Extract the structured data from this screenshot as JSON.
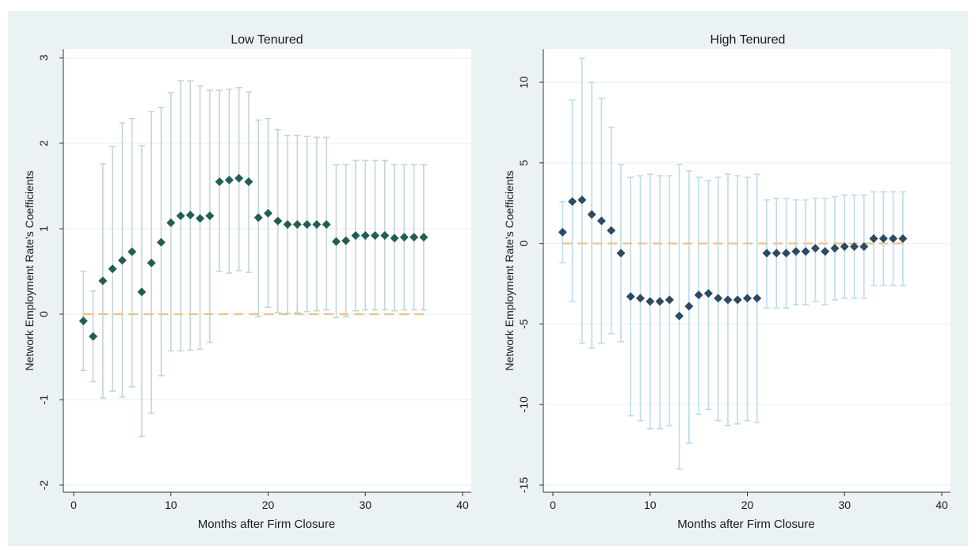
{
  "chart_data": [
    {
      "type": "scatter",
      "title": "Low Tenured",
      "xlabel": "Months after Firm Closure",
      "ylabel": "Network Employment Rate's Coefficients",
      "xlim": [
        0,
        40
      ],
      "ylim": [
        -2,
        3
      ],
      "xticks": [
        "0",
        "10",
        "20",
        "30",
        "40"
      ],
      "yticks": [
        "-2",
        "-1",
        "0",
        "1",
        "2",
        "3"
      ],
      "grid": true,
      "reference_line": 0,
      "colors": {
        "marker": "#215e55",
        "ci": "#c3d6d3",
        "ref_line": "#f0c08a",
        "plot_bg": "#ffffff",
        "outer_bg": "#eaf2f3"
      },
      "x": [
        1,
        2,
        3,
        4,
        5,
        6,
        7,
        8,
        9,
        10,
        11,
        12,
        13,
        14,
        15,
        16,
        17,
        18,
        19,
        20,
        21,
        22,
        23,
        24,
        25,
        26,
        27,
        28,
        29,
        30,
        31,
        32,
        33,
        34,
        35,
        36
      ],
      "coef": [
        -0.08,
        -0.26,
        0.39,
        0.53,
        0.63,
        0.73,
        0.26,
        0.6,
        0.84,
        1.07,
        1.15,
        1.16,
        1.12,
        1.15,
        1.55,
        1.57,
        1.59,
        1.55,
        1.13,
        1.18,
        1.09,
        1.05,
        1.05,
        1.05,
        1.05,
        1.05,
        0.85,
        0.86,
        0.92,
        0.92,
        0.92,
        0.92,
        0.89,
        0.9,
        0.9,
        0.9
      ],
      "ci_low": [
        -0.66,
        -0.79,
        -0.98,
        -0.9,
        -0.97,
        -0.85,
        -1.43,
        -1.16,
        -0.72,
        -0.43,
        -0.43,
        -0.42,
        -0.41,
        -0.33,
        0.5,
        0.48,
        0.51,
        0.49,
        -0.03,
        0.08,
        0.02,
        0.01,
        0.02,
        0.03,
        0.04,
        0.05,
        -0.04,
        -0.03,
        0.04,
        0.05,
        0.05,
        0.05,
        0.04,
        0.05,
        0.05,
        0.05
      ],
      "ci_high": [
        0.5,
        0.27,
        1.76,
        1.96,
        2.24,
        2.29,
        1.97,
        2.37,
        2.42,
        2.59,
        2.73,
        2.73,
        2.67,
        2.62,
        2.62,
        2.63,
        2.65,
        2.6,
        2.27,
        2.29,
        2.16,
        2.09,
        2.09,
        2.08,
        2.07,
        2.07,
        1.75,
        1.75,
        1.8,
        1.8,
        1.8,
        1.8,
        1.75,
        1.75,
        1.75,
        1.75
      ]
    },
    {
      "type": "scatter",
      "title": "High Tenured",
      "xlabel": "Months after Firm Closure",
      "ylabel": "Network Employment Rate's Coefficients",
      "xlim": [
        0,
        40
      ],
      "ylim": [
        -15,
        10
      ],
      "xticks": [
        "0",
        "10",
        "20",
        "30",
        "40"
      ],
      "yticks": [
        "-15",
        "-10",
        "-5",
        "0",
        "5",
        "10"
      ],
      "grid": true,
      "reference_line": 0,
      "colors": {
        "marker": "#2c4a62",
        "ci": "#bcdcec",
        "ref_line": "#f0c08a",
        "plot_bg": "#ffffff",
        "outer_bg": "#eaf2f3"
      },
      "x": [
        1,
        2,
        3,
        4,
        5,
        6,
        7,
        8,
        9,
        10,
        11,
        12,
        13,
        14,
        15,
        16,
        17,
        18,
        19,
        20,
        21,
        22,
        23,
        24,
        25,
        26,
        27,
        28,
        29,
        30,
        31,
        32,
        33,
        34,
        35,
        36
      ],
      "coef": [
        0.7,
        2.6,
        2.7,
        1.8,
        1.4,
        0.8,
        -0.6,
        -3.3,
        -3.4,
        -3.6,
        -3.6,
        -3.5,
        -4.5,
        -3.9,
        -3.2,
        -3.1,
        -3.4,
        -3.5,
        -3.5,
        -3.4,
        -3.4,
        -0.6,
        -0.6,
        -0.6,
        -0.5,
        -0.5,
        -0.3,
        -0.5,
        -0.3,
        -0.2,
        -0.2,
        -0.2,
        0.3,
        0.3,
        0.3,
        0.3
      ],
      "ci_low": [
        -1.2,
        -3.6,
        -6.2,
        -6.5,
        -6.2,
        -5.6,
        -6.1,
        -10.7,
        -11.0,
        -11.5,
        -11.5,
        -11.3,
        -14.0,
        -12.4,
        -10.6,
        -10.3,
        -11.0,
        -11.3,
        -11.2,
        -11.0,
        -11.1,
        -4.0,
        -4.0,
        -4.0,
        -3.8,
        -3.8,
        -3.6,
        -3.8,
        -3.5,
        -3.4,
        -3.4,
        -3.4,
        -2.6,
        -2.6,
        -2.6,
        -2.6
      ],
      "ci_high": [
        2.6,
        8.9,
        11.5,
        10.0,
        9.0,
        7.2,
        4.9,
        4.1,
        4.2,
        4.3,
        4.2,
        4.2,
        4.9,
        4.5,
        4.1,
        3.9,
        4.1,
        4.3,
        4.2,
        4.1,
        4.3,
        2.7,
        2.8,
        2.8,
        2.7,
        2.7,
        2.8,
        2.8,
        2.9,
        3.0,
        3.0,
        3.0,
        3.2,
        3.2,
        3.2,
        3.2
      ]
    }
  ]
}
